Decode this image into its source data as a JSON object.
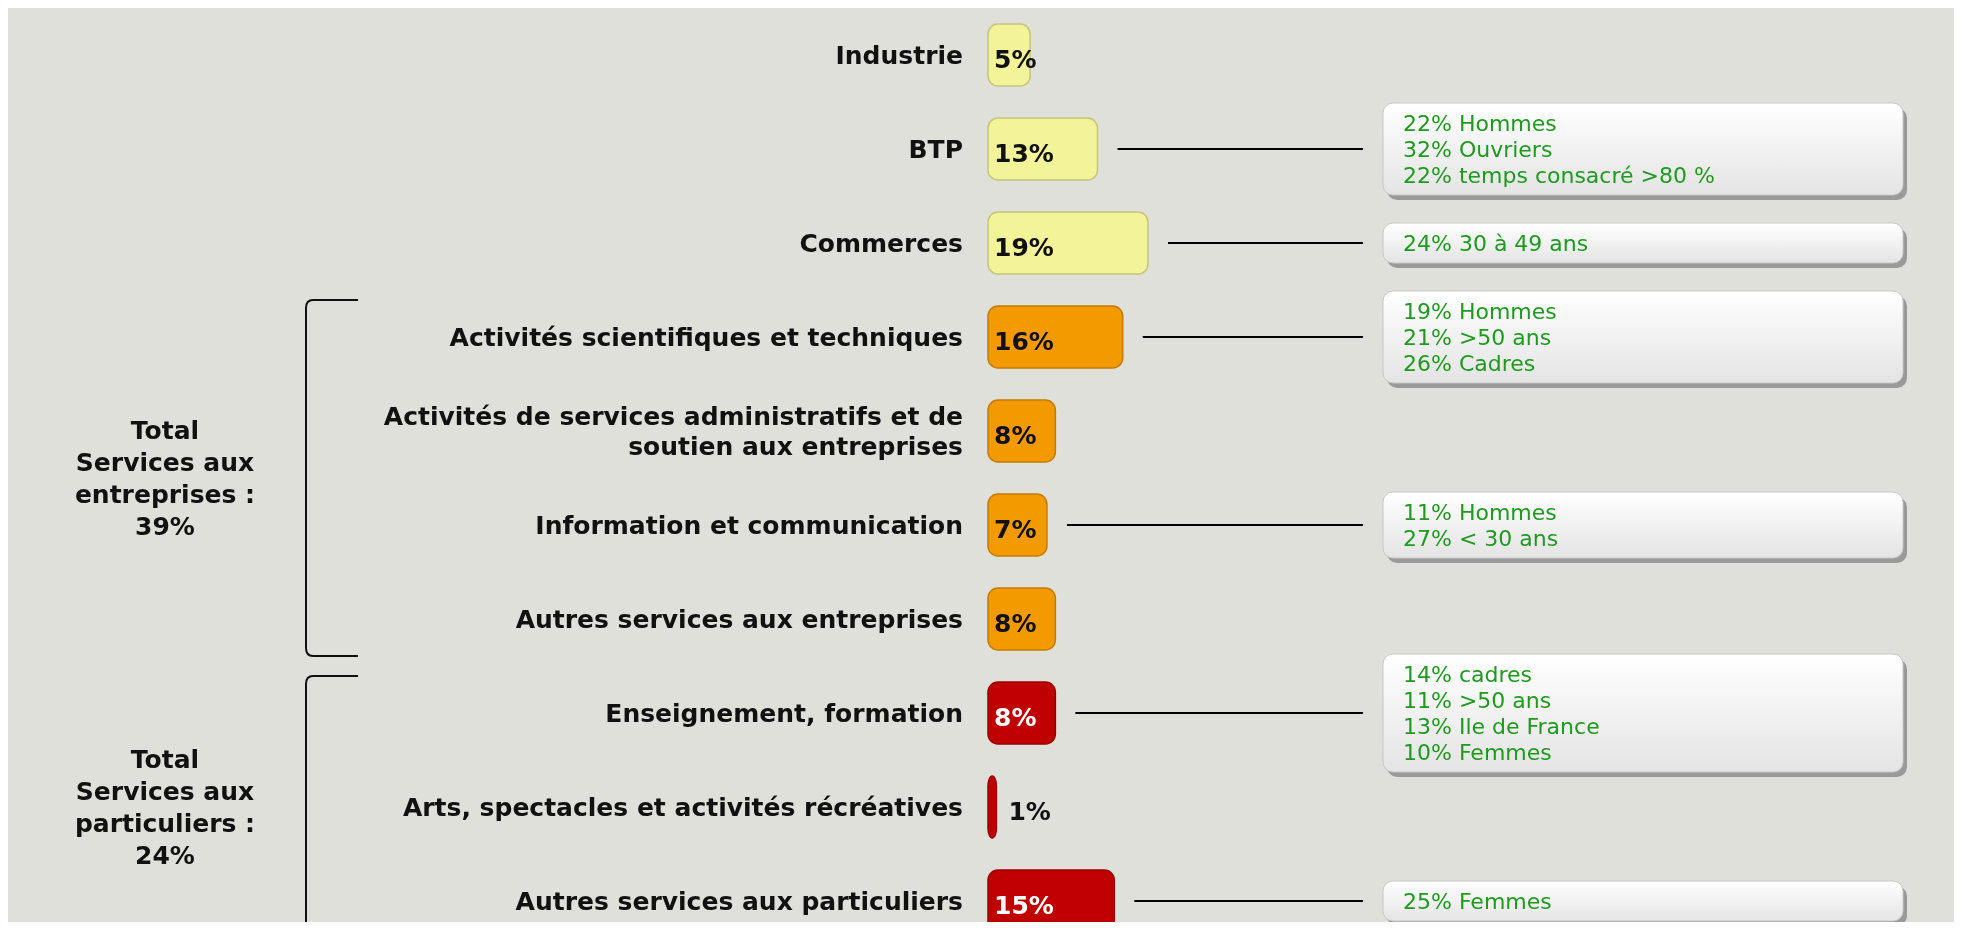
{
  "chart_data": {
    "type": "bar",
    "orientation": "horizontal",
    "categories": [
      "Industrie",
      "BTP",
      "Commerces",
      "Activités scientifiques et techniques",
      "Activités de services administratifs et de soutien aux entreprises",
      "Information et communication",
      "Autres services aux entreprises",
      "Enseignement, formation",
      "Arts, spectacles et activités récréatives",
      "Autres services aux particuliers"
    ],
    "values": [
      5,
      13,
      19,
      16,
      8,
      7,
      8,
      8,
      1,
      15
    ],
    "colors": [
      "#f3f39a",
      "#f3f39a",
      "#f3f39a",
      "#f39a00",
      "#f39a00",
      "#f39a00",
      "#f39a00",
      "#c00000",
      "#c00000",
      "#c00000"
    ],
    "data_labels": true,
    "value_labels": [
      "5%",
      "13%",
      "19%",
      "16%",
      "8%",
      "7%",
      "8%",
      "8%",
      "1%",
      "15%"
    ],
    "annotations": [
      "22%  Hommes\n32% Ouvriers\n22% temps consacré >80 %",
      "24% 30 à 49 ans",
      "19% Hommes\n21% >50 ans\n26% Cadres",
      "11% Hommes\n27% < 30 ans",
      "14% cadres\n11% >50 ans\n13% Ile de France\n10% Femmes",
      "25% Femmes",
      "Total\nServices aux\nentreprises :\n39%",
      "Total\nServices aux\nparticuliers :\n24%"
    ]
  }
}
